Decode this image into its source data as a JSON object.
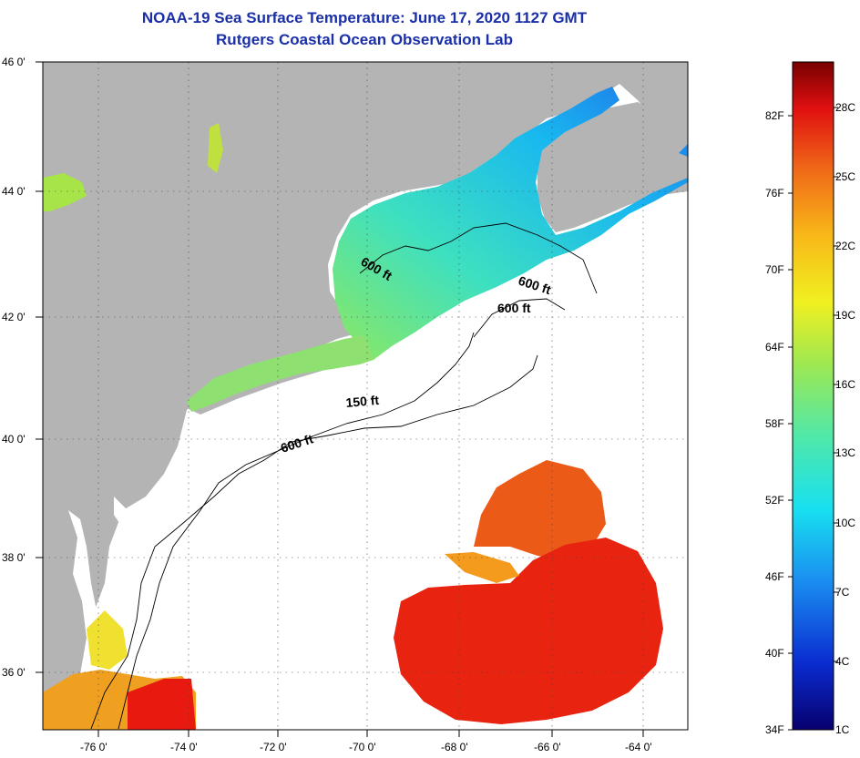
{
  "header": {
    "title": "NOAA-19 Sea Surface Temperature:  June 17, 2020 1127 GMT",
    "subtitle": "Rutgers Coastal Ocean Observation Lab"
  },
  "map": {
    "lon_ticks": [
      {
        "value": -76,
        "label": "-76 0'"
      },
      {
        "value": -74,
        "label": "-74 0'"
      },
      {
        "value": -72,
        "label": "-72 0'"
      },
      {
        "value": -70,
        "label": "-70 0'"
      },
      {
        "value": -68,
        "label": "-68 0'"
      },
      {
        "value": -66,
        "label": "-66 0'"
      },
      {
        "value": -64,
        "label": "-64 0'"
      }
    ],
    "lat_ticks": [
      {
        "value": 46,
        "label": "46 0'"
      },
      {
        "value": 44,
        "label": "44 0'"
      },
      {
        "value": 42,
        "label": "42 0'"
      },
      {
        "value": 40,
        "label": "40 0'"
      },
      {
        "value": 38,
        "label": "38 0'"
      },
      {
        "value": 36,
        "label": "36 0'"
      }
    ],
    "contour_labels": [
      "600 ft",
      "600 ft",
      "600 ft",
      "150 ft",
      "600 ft"
    ],
    "colors": {
      "land": "#b4b4b4",
      "ocean_nodata": "#ffffff"
    }
  },
  "colorbar": {
    "f_labels": [
      "82F",
      "76F",
      "70F",
      "64F",
      "58F",
      "52F",
      "46F",
      "40F",
      "34F"
    ],
    "c_labels": [
      "28C",
      "25C",
      "22C",
      "19C",
      "16C",
      "13C",
      "10C",
      "7C",
      "4C",
      "1C"
    ],
    "colors": [
      "#08006e",
      "#0a2cd0",
      "#1a8cf0",
      "#18e0f0",
      "#50e8a8",
      "#a0e850",
      "#f0f020",
      "#f8b818",
      "#f06818",
      "#e01010",
      "#780000"
    ]
  }
}
